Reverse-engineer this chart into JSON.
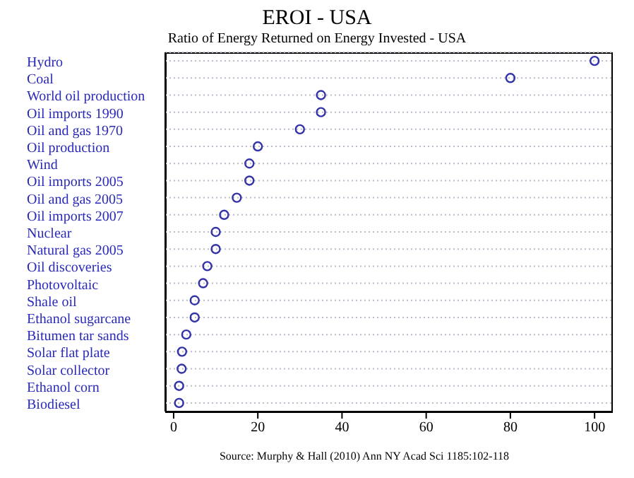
{
  "chart_data": {
    "type": "scatter",
    "title": "EROI - USA",
    "subtitle": "Ratio of Energy Returned on Energy Invested - USA",
    "orientation": "horizontal",
    "categories": [
      "Hydro",
      "Coal",
      "World oil production",
      "Oil imports 1990",
      "Oil and gas 1970",
      "Oil production",
      "Wind",
      "Oil imports 2005",
      "Oil and gas 2005",
      "Oil imports 2007",
      "Nuclear",
      "Natural gas 2005",
      "Oil discoveries",
      "Photovoltaic",
      "Shale oil",
      "Ethanol sugarcane",
      "Bitumen tar sands",
      "Solar flat plate",
      "Solar collector",
      "Ethanol corn",
      "Biodiesel"
    ],
    "series": [
      {
        "color": "#3333aa",
        "values": [
          100,
          80,
          35,
          35,
          30,
          20,
          18,
          18,
          15,
          12,
          10,
          10,
          8,
          7,
          5,
          5,
          3,
          2,
          1.9,
          1.3,
          1.3
        ]
      }
    ],
    "xlim": [
      -2,
      104
    ],
    "xticks": [
      0,
      20,
      40,
      60,
      80,
      100
    ],
    "grid": "y",
    "marker": "circle",
    "annotations": [
      "Source: Murphy & Hall (2010) Ann NY Acad Sci 1185:102-118"
    ]
  }
}
